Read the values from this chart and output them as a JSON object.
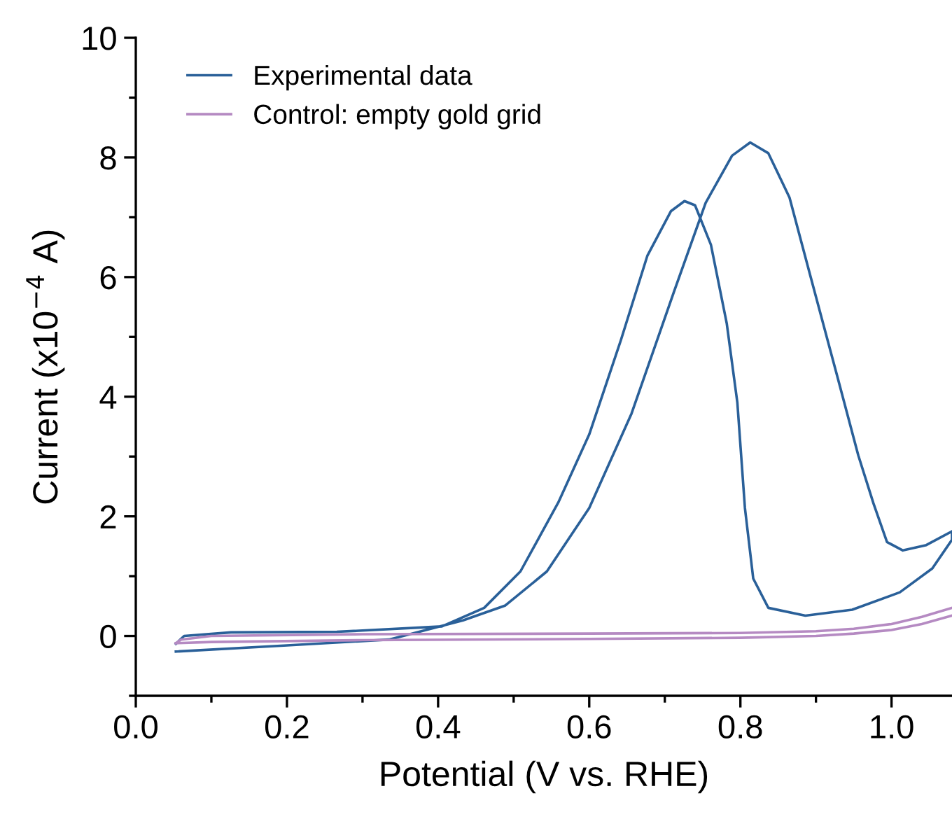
{
  "chart_data": {
    "type": "line",
    "xlabel": "Potential (V vs. RHE)",
    "ylabel": "Current (x10$^{−4}$ A)",
    "xlim": [
      0,
      1.08
    ],
    "ylim": [
      -1,
      10
    ],
    "xticks": [
      {
        "value": 0,
        "label": "0.0"
      },
      {
        "value": 0.1,
        "label": null
      },
      {
        "value": 0.2,
        "label": "0.2"
      },
      {
        "value": 0.3,
        "label": null
      },
      {
        "value": 0.4,
        "label": "0.4"
      },
      {
        "value": 0.5,
        "label": null
      },
      {
        "value": 0.6,
        "label": "0.6"
      },
      {
        "value": 0.7,
        "label": null
      },
      {
        "value": 0.8,
        "label": "0.8"
      },
      {
        "value": 0.9,
        "label": null
      },
      {
        "value": 1.0,
        "label": "1.0"
      }
    ],
    "yticks": [
      {
        "value": -1,
        "label": null
      },
      0,
      {
        "value": 1,
        "label": null
      },
      2,
      {
        "value": 3,
        "label": null
      },
      4,
      {
        "value": 5,
        "label": null
      },
      6,
      {
        "value": 7,
        "label": null
      },
      8,
      {
        "value": 9,
        "label": null
      },
      10
    ],
    "legend": "top left",
    "grid": false,
    "marker": "none",
    "line_style": "solid",
    "series": [
      {
        "name": "Experimental data",
        "color": "#2a6099",
        "x": [
          0.053,
          0.196,
          0.335,
          0.433,
          0.489,
          0.544,
          0.6,
          0.656,
          0.712,
          0.754,
          0.789,
          0.813,
          0.837,
          0.865,
          0.893,
          0.928,
          0.956,
          0.976,
          0.994,
          1.015,
          1.046,
          1.08,
          1.08,
          1.054,
          1.011,
          0.948,
          0.886,
          0.837,
          0.817,
          0.806,
          0.796,
          0.782,
          0.761,
          0.74,
          0.726,
          0.708,
          0.677,
          0.642,
          0.6,
          0.559,
          0.509,
          0.461,
          0.405,
          0.266,
          0.126,
          0.064,
          0.053
        ],
        "values": [
          -0.26,
          -0.16,
          -0.06,
          0.26,
          0.51,
          1.08,
          2.14,
          3.72,
          5.75,
          7.24,
          8.03,
          8.25,
          8.07,
          7.33,
          6.0,
          4.35,
          3.02,
          2.22,
          1.57,
          1.43,
          1.52,
          1.75,
          1.61,
          1.13,
          0.73,
          0.44,
          0.34,
          0.47,
          0.96,
          2.14,
          3.9,
          5.22,
          6.54,
          7.2,
          7.27,
          7.1,
          6.36,
          4.95,
          3.37,
          2.23,
          1.08,
          0.47,
          0.16,
          0.07,
          0.06,
          0.0,
          -0.13
        ]
      },
      {
        "name": "Control: empty gold grid",
        "color": "#b58ac2",
        "x": [
          0.053,
          0.1,
          0.3,
          0.6,
          0.8,
          0.9,
          0.95,
          1.0,
          1.04,
          1.08
        ],
        "values": [
          -0.12,
          -0.1,
          -0.07,
          -0.05,
          -0.03,
          0.0,
          0.04,
          0.1,
          0.2,
          0.34
        ]
      },
      {
        "color": "#b58ac2",
        "x": [
          1.08,
          1.04,
          1.0,
          0.95,
          0.9,
          0.8,
          0.6,
          0.3,
          0.1,
          0.06,
          0.053
        ],
        "values": [
          0.47,
          0.32,
          0.2,
          0.12,
          0.08,
          0.05,
          0.04,
          0.03,
          0.0,
          -0.06,
          -0.12
        ]
      }
    ]
  }
}
